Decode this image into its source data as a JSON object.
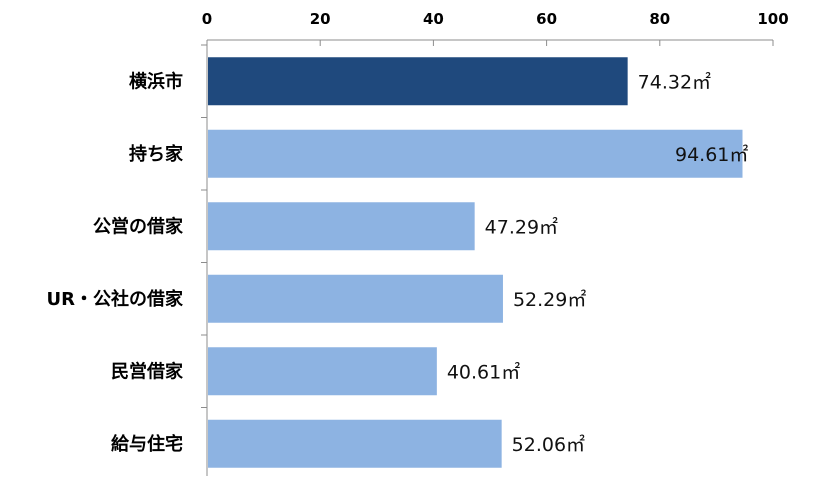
{
  "chart_data": {
    "type": "bar",
    "orientation": "horizontal",
    "categories": [
      "横浜市",
      "持ち家",
      "公営の借家",
      "UR・公社の借家",
      "民営借家",
      "給与住宅"
    ],
    "values": [
      74.32,
      94.61,
      47.29,
      52.29,
      40.61,
      52.06
    ],
    "value_labels": [
      "74.32㎡",
      "94.61㎡",
      "47.29㎡",
      "52.29㎡",
      "40.61㎡",
      "52.06㎡"
    ],
    "x_ticks": [
      "0",
      "20",
      "40",
      "60",
      "80",
      "100"
    ],
    "xlim": [
      0,
      100
    ],
    "x_axis_position": "top",
    "grid": false,
    "colors": {
      "highlight": "#1f497d",
      "default": "#8db3e2"
    },
    "highlight_index": 0
  }
}
